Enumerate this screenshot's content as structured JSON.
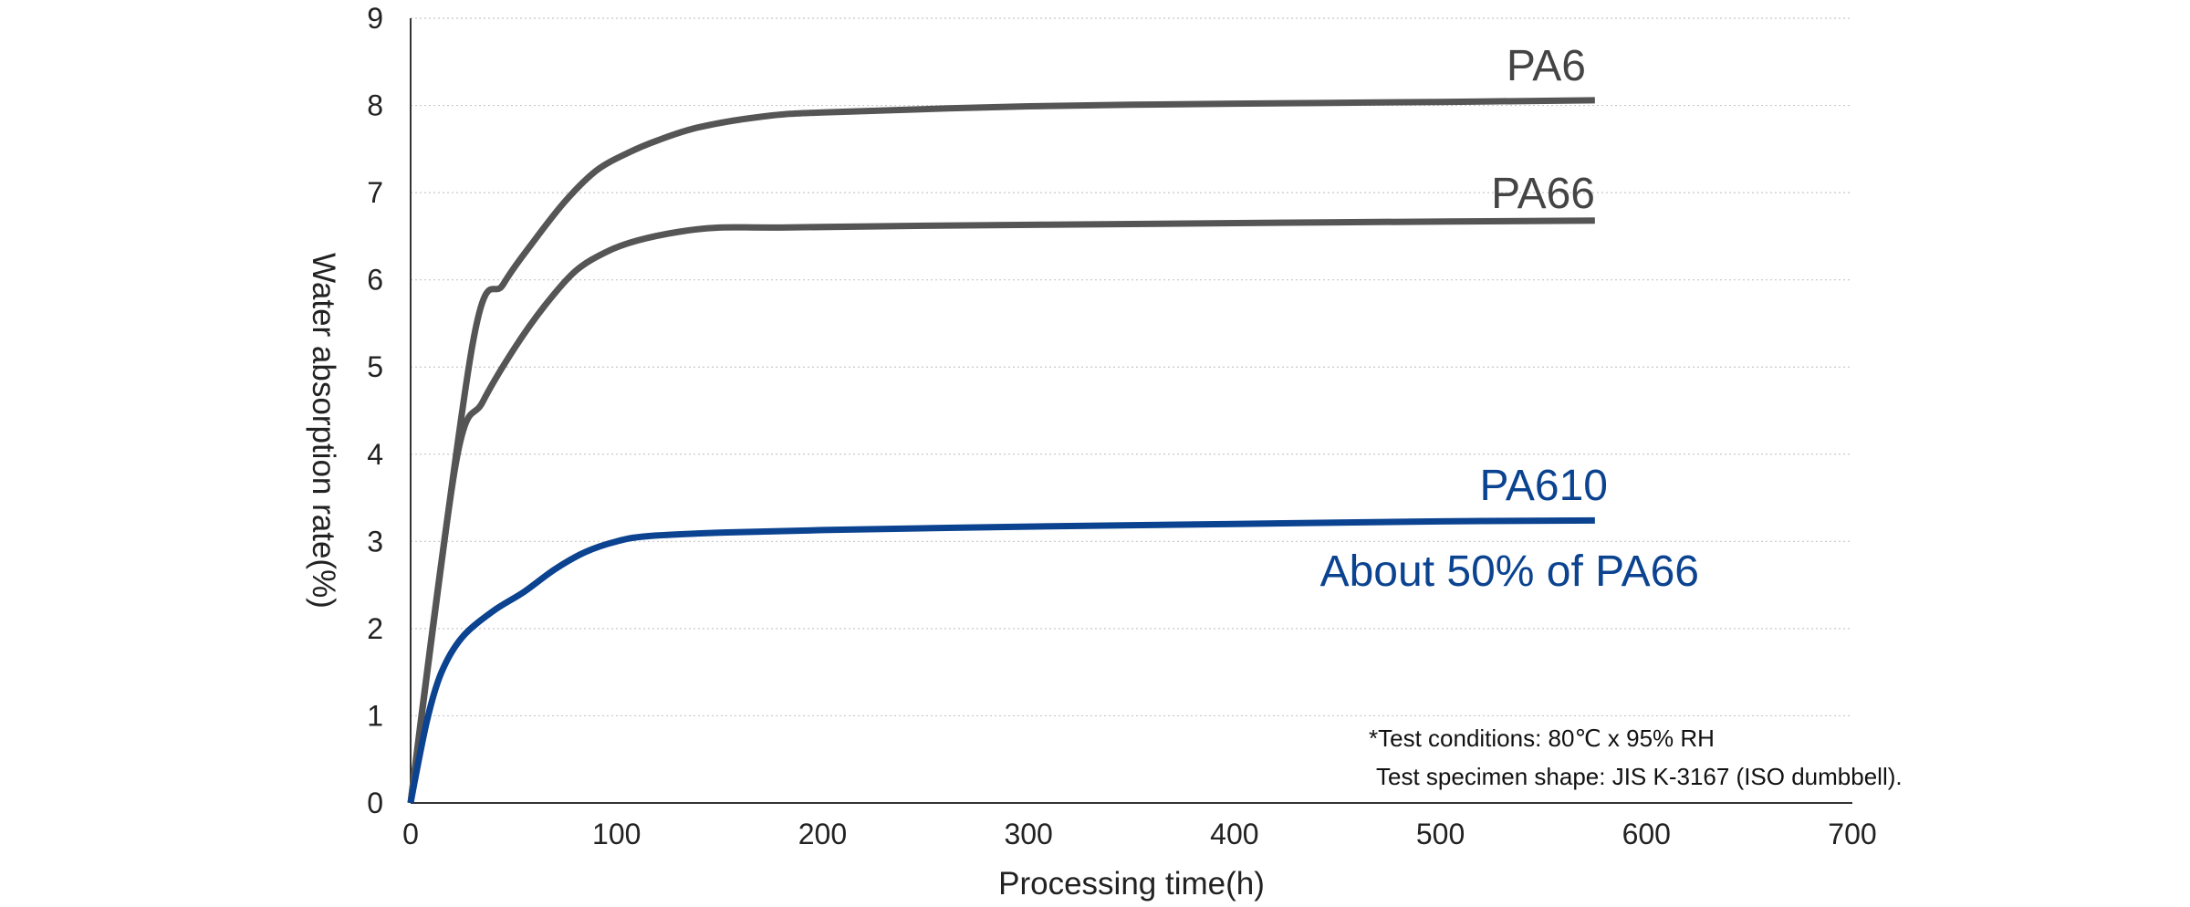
{
  "chart_data": {
    "type": "line",
    "xlabel": "Processing time(h)",
    "ylabel": "Water absorption rate(%)",
    "xlim": [
      0,
      700
    ],
    "ylim": [
      0,
      9
    ],
    "xticks": [
      0,
      100,
      200,
      300,
      400,
      500,
      600,
      700
    ],
    "yticks": [
      0,
      1,
      2,
      3,
      4,
      5,
      6,
      7,
      8,
      9
    ],
    "grid": "horizontal dotted",
    "series": [
      {
        "name": "PA6",
        "color": "#555555",
        "x": [
          0,
          30,
          45,
          60,
          75,
          90,
          105,
          120,
          140,
          170,
          200,
          300,
          400,
          500,
          575
        ],
        "y": [
          0,
          5.25,
          5.95,
          6.45,
          6.9,
          7.25,
          7.45,
          7.6,
          7.75,
          7.87,
          7.92,
          7.99,
          8.02,
          8.04,
          8.06
        ]
      },
      {
        "name": "PA66",
        "color": "#555555",
        "x": [
          0,
          22,
          35,
          50,
          65,
          80,
          95,
          110,
          130,
          150,
          180,
          250,
          350,
          450,
          575
        ],
        "y": [
          0,
          3.9,
          4.6,
          5.2,
          5.7,
          6.1,
          6.32,
          6.45,
          6.55,
          6.6,
          6.6,
          6.62,
          6.64,
          6.66,
          6.68
        ]
      },
      {
        "name": "PA610",
        "color": "#0b4390",
        "x": [
          0,
          8,
          15,
          25,
          40,
          55,
          70,
          85,
          100,
          115,
          150,
          200,
          300,
          400,
          500,
          575
        ],
        "y": [
          0,
          0.95,
          1.5,
          1.9,
          2.2,
          2.42,
          2.68,
          2.88,
          3.0,
          3.06,
          3.1,
          3.13,
          3.17,
          3.2,
          3.23,
          3.24
        ]
      }
    ],
    "annotations": {
      "pa610_note": "About 50% of PA66",
      "conditions": "*Test conditions: 80℃ x 95% RH",
      "specimen": "Test specimen shape: JIS K-3167 (ISO dumbbell)."
    }
  }
}
